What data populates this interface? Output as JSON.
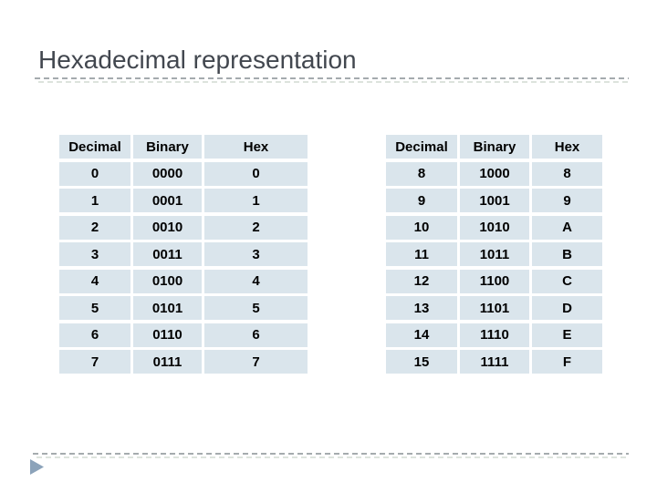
{
  "slide": {
    "title": "Hexadecimal representation"
  },
  "tables": [
    {
      "name": "decimal-0-7",
      "headers": [
        "Decimal",
        "Binary",
        "Hex"
      ],
      "rows": [
        [
          "0",
          "0000",
          "0"
        ],
        [
          "1",
          "0001",
          "1"
        ],
        [
          "2",
          "0010",
          "2"
        ],
        [
          "3",
          "0011",
          "3"
        ],
        [
          "4",
          "0100",
          "4"
        ],
        [
          "5",
          "0101",
          "5"
        ],
        [
          "6",
          "0110",
          "6"
        ],
        [
          "7",
          "0111",
          "7"
        ]
      ]
    },
    {
      "name": "decimal-8-15",
      "headers": [
        "Decimal",
        "Binary",
        "Hex"
      ],
      "rows": [
        [
          "8",
          "1000",
          "8"
        ],
        [
          "9",
          "1001",
          "9"
        ],
        [
          "10",
          "1010",
          "A"
        ],
        [
          "11",
          "1011",
          "B"
        ],
        [
          "12",
          "1100",
          "C"
        ],
        [
          "13",
          "1101",
          "D"
        ],
        [
          "14",
          "1110",
          "E"
        ],
        [
          "15",
          "1111",
          "F"
        ]
      ]
    }
  ],
  "footer": {
    "triangle_icon": "right-pointing-triangle"
  },
  "colors": {
    "title_text": "#42474F",
    "table_cell_bg": "#DAE5EC",
    "table_text": "#000000",
    "dashed_rule": "#A5ABAE",
    "dashed_rule_light": "#DDE3DD",
    "triangle": "#8CA3BA"
  }
}
